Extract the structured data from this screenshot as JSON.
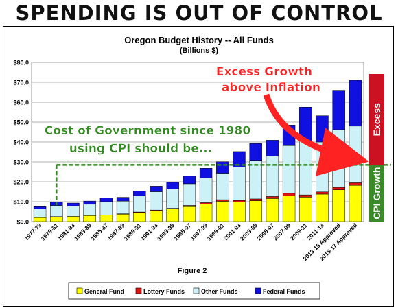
{
  "headline": "SPENDING IS OUT OF CONTROL",
  "figure_caption": "Figure 2",
  "chart_data": {
    "type": "bar",
    "stacked": true,
    "title": "Oregon Budget History -- All Funds",
    "subtitle": "(Billions $)",
    "categories": [
      "1977-79",
      "1979-81",
      "1981-83",
      "1983-85",
      "1985-87",
      "1987-89",
      "1989-91",
      "1991-93",
      "1993-95",
      "1995-97",
      "1997-99",
      "1999-01",
      "2001-03",
      "2003-05",
      "2005-07",
      "2007-09",
      "2009-11",
      "2011-13",
      "2013-15 Approved",
      "2015-17 Approved"
    ],
    "ylim": [
      0,
      80
    ],
    "yticks": [
      0,
      10,
      20,
      30,
      40,
      50,
      60,
      70,
      80
    ],
    "ytick_labels": [
      "$0.0",
      "$10.0",
      "$20.0",
      "$30.0",
      "$40.0",
      "$50.0",
      "$60.0",
      "$70.0",
      "$80.0"
    ],
    "grid": true,
    "legend_position": "bottom",
    "series": [
      {
        "name": "General Fund",
        "color": "#ffff00",
        "values": [
          2.0,
          2.5,
          2.6,
          3.0,
          3.3,
          3.7,
          4.5,
          5.5,
          6.3,
          7.5,
          8.8,
          10.2,
          9.8,
          10.5,
          11.6,
          13.0,
          12.3,
          13.8,
          16.0,
          18.2
        ]
      },
      {
        "name": "Lottery Funds",
        "color": "#e11414",
        "values": [
          0,
          0,
          0,
          0,
          0,
          0.2,
          0.3,
          0.3,
          0.4,
          0.6,
          0.7,
          0.8,
          0.8,
          0.9,
          1.0,
          1.2,
          1.1,
          1.1,
          1.2,
          1.3
        ]
      },
      {
        "name": "Other Funds",
        "color": "#ccf2f7",
        "values": [
          4.3,
          5.6,
          5.2,
          5.7,
          6.7,
          6.4,
          8.2,
          9.2,
          9.6,
          10.9,
          12.5,
          13.3,
          16.9,
          19.4,
          20.4,
          24.0,
          27.1,
          25.1,
          29.0,
          28.5
        ]
      },
      {
        "name": "Federal Funds",
        "color": "#1010e0",
        "values": [
          1.2,
          1.7,
          1.5,
          1.6,
          1.9,
          1.9,
          2.3,
          2.8,
          3.4,
          4.0,
          4.8,
          5.8,
          7.7,
          8.4,
          7.9,
          10.3,
          17.0,
          13.2,
          19.8,
          23.0
        ]
      }
    ],
    "annotations": {
      "excess_growth_line1": "Excess Growth",
      "excess_growth_line2": "above  Inflation",
      "cpi_line1": "Cost of Government since 1980",
      "cpi_line2": "using CPI should be...",
      "cpi_level": 28.5,
      "cpi_start_category": "1979-81",
      "excess_label": "Excess",
      "cpi_growth_label": "CPI Growth",
      "excess_color": "#cc1122",
      "cpi_color": "#3a8a2a",
      "annotation_red": "#ff2222",
      "annotation_green": "#2f8a1e"
    }
  }
}
